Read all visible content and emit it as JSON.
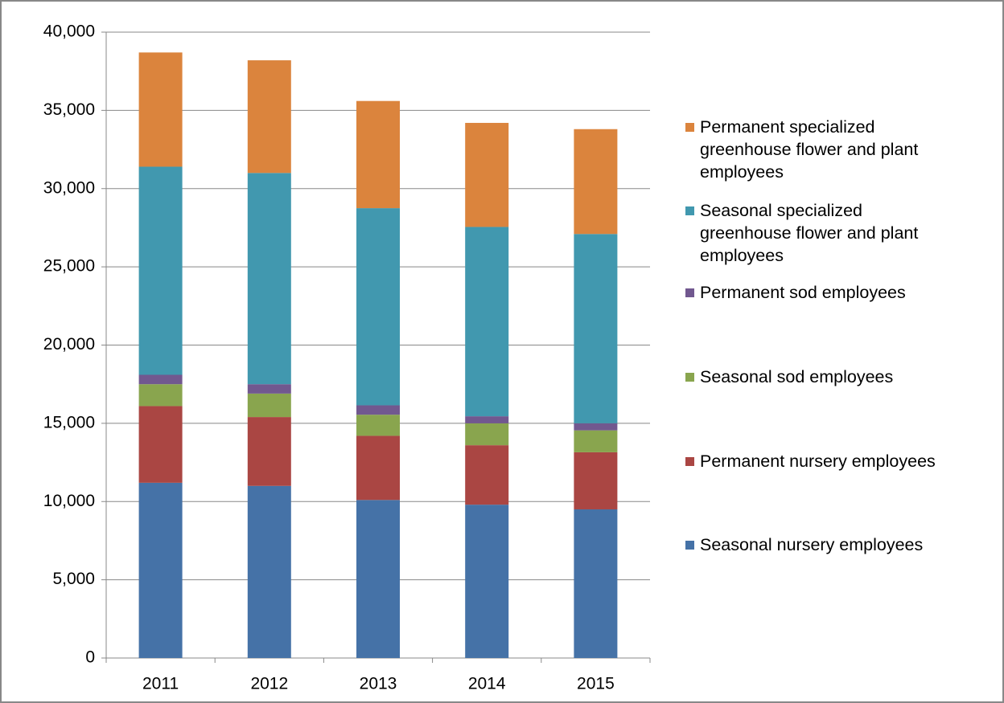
{
  "chart_data": {
    "type": "stacked_bar",
    "categories": [
      "2011",
      "2012",
      "2013",
      "2014",
      "2015"
    ],
    "series": [
      {
        "name": "Seasonal nursery employees",
        "color": "#4572a7",
        "values": [
          11200,
          11000,
          10100,
          9800,
          9500
        ]
      },
      {
        "name": "Permanent nursery employees",
        "color": "#aa4643",
        "values": [
          4900,
          4400,
          4100,
          3800,
          3650
        ]
      },
      {
        "name": "Seasonal sod employees",
        "color": "#89a54e",
        "values": [
          1400,
          1500,
          1350,
          1400,
          1400
        ]
      },
      {
        "name": "Permanent sod employees",
        "color": "#71588f",
        "values": [
          600,
          600,
          600,
          450,
          450
        ]
      },
      {
        "name": "Seasonal specialized greenhouse flower and plant employees",
        "color": "#4198af",
        "values": [
          13300,
          13500,
          12600,
          12100,
          12100
        ]
      },
      {
        "name": "Permanent specialized greenhouse flower and plant employees",
        "color": "#db843d",
        "values": [
          7300,
          7200,
          6850,
          6650,
          6700
        ]
      }
    ],
    "ylim": [
      0,
      40000
    ],
    "yticks": [
      0,
      {
        "value": 5000,
        "label": "5,000"
      },
      {
        "value": 10000,
        "label": "10,000"
      },
      {
        "value": 15000,
        "label": "15,000"
      },
      {
        "value": 20000,
        "label": "20,000"
      },
      {
        "value": 25000,
        "label": "25,000"
      },
      {
        "value": 30000,
        "label": "30,000"
      },
      {
        "value": 35000,
        "label": "35,000"
      },
      {
        "value": 40000,
        "label": "40,000"
      }
    ],
    "grid": true,
    "legend": "right"
  }
}
